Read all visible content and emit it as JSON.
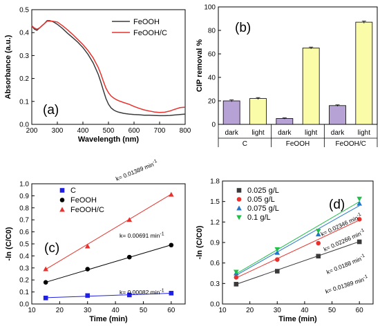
{
  "chart_data": [
    {
      "type": "line",
      "panel_label": "(a)",
      "xlabel": "Wavelength (nm)",
      "ylabel": "Absorbance (a.u.)",
      "xlim": [
        200,
        800
      ],
      "ylim": [
        0.0,
        0.5
      ],
      "xticks": [
        "200",
        "300",
        "400",
        "500",
        "600",
        "700",
        "800"
      ],
      "yticks": [
        "0.0",
        "0.1",
        "0.2",
        "0.3",
        "0.4",
        "0.5"
      ],
      "legend_position": "top-right",
      "series": [
        {
          "name": "FeOOH",
          "color": "#3a3a3a",
          "x": [
            200,
            210,
            220,
            230,
            240,
            250,
            260,
            270,
            280,
            290,
            300,
            320,
            340,
            360,
            380,
            400,
            420,
            440,
            460,
            470,
            480,
            490,
            500,
            510,
            520,
            530,
            540,
            560,
            580,
            600,
            620,
            640,
            660,
            680,
            700,
            720,
            740,
            760,
            780,
            800
          ],
          "y": [
            0.43,
            0.415,
            0.41,
            0.42,
            0.43,
            0.44,
            0.452,
            0.452,
            0.449,
            0.443,
            0.436,
            0.418,
            0.397,
            0.378,
            0.358,
            0.335,
            0.305,
            0.268,
            0.218,
            0.185,
            0.148,
            0.113,
            0.088,
            0.072,
            0.063,
            0.057,
            0.053,
            0.048,
            0.045,
            0.043,
            0.042,
            0.04,
            0.04,
            0.039,
            0.038,
            0.038,
            0.039,
            0.041,
            0.043,
            0.045
          ]
        },
        {
          "name": "FeOOH/C",
          "color": "#e8312c",
          "x": [
            200,
            210,
            220,
            230,
            240,
            250,
            260,
            270,
            280,
            290,
            300,
            320,
            340,
            360,
            380,
            400,
            420,
            440,
            460,
            470,
            480,
            490,
            500,
            510,
            520,
            530,
            540,
            560,
            580,
            600,
            620,
            640,
            660,
            680,
            700,
            720,
            740,
            760,
            780,
            800
          ],
          "y": [
            0.43,
            0.42,
            0.415,
            0.42,
            0.43,
            0.44,
            0.45,
            0.45,
            0.45,
            0.448,
            0.446,
            0.43,
            0.412,
            0.392,
            0.37,
            0.348,
            0.322,
            0.29,
            0.248,
            0.22,
            0.188,
            0.158,
            0.138,
            0.124,
            0.115,
            0.108,
            0.103,
            0.095,
            0.088,
            0.078,
            0.07,
            0.063,
            0.058,
            0.054,
            0.052,
            0.053,
            0.058,
            0.066,
            0.073,
            0.075
          ]
        }
      ]
    },
    {
      "type": "bar",
      "panel_label": "(b)",
      "ylabel": "CIP removal %",
      "ylim": [
        0,
        100
      ],
      "yticks": [
        "0",
        "20",
        "40",
        "60",
        "80",
        "100"
      ],
      "categories": [
        "dark",
        "light",
        "dark",
        "light",
        "dark",
        "light"
      ],
      "groups": [
        "C",
        "FeOOH",
        "FeOOH/C"
      ],
      "values": [
        20,
        22,
        5,
        65,
        16,
        87
      ],
      "errors": [
        0.8,
        0.8,
        0.5,
        0.8,
        0.6,
        1.0
      ],
      "colors": {
        "dark": "#b7a2d6",
        "light": "#fbfca8"
      }
    },
    {
      "type": "scatter",
      "panel_label": "(c)",
      "xlabel": "Time (min)",
      "ylabel": "-ln (C/C0)",
      "xlim": [
        10,
        65
      ],
      "ylim": [
        0.0,
        1.0
      ],
      "xticks": [
        "10",
        "20",
        "30",
        "40",
        "50",
        "60"
      ],
      "yticks": [
        "0.0",
        "0.1",
        "0.2",
        "0.3",
        "0.4",
        "0.5",
        "0.6",
        "0.7",
        "0.8",
        "0.9",
        "1.0"
      ],
      "legend_position": "top-left",
      "series": [
        {
          "name": "C",
          "color": "#1f1fe6",
          "marker": "square",
          "x": [
            15,
            30,
            45,
            60
          ],
          "y": [
            0.05,
            0.07,
            0.075,
            0.09
          ],
          "fit": [
            0.04,
            0.00082
          ],
          "k_label": "k= 0.00082 min",
          "sup": "-1"
        },
        {
          "name": "FeOOH",
          "color": "#000000",
          "marker": "circle",
          "x": [
            15,
            30,
            45,
            60
          ],
          "y": [
            0.18,
            0.29,
            0.39,
            0.49
          ],
          "fit": [
            0.077,
            0.00691
          ],
          "k_label": "k= 0.00691 min",
          "sup": "-1"
        },
        {
          "name": "FeOOH/C",
          "color": "#e8312c",
          "marker": "triangle",
          "x": [
            15,
            30,
            45,
            60
          ],
          "y": [
            0.29,
            0.48,
            0.7,
            0.91
          ],
          "fit": [
            0.08,
            0.01389
          ],
          "k_label": "k= 0.01389 min",
          "sup": "-1"
        }
      ]
    },
    {
      "type": "scatter",
      "panel_label": "(d)",
      "xlabel": "Time (min)",
      "ylabel": "-ln (C/C0)",
      "xlim": [
        10,
        65
      ],
      "ylim": [
        0.0,
        1.8
      ],
      "xticks": [
        "10",
        "20",
        "30",
        "40",
        "50",
        "60"
      ],
      "yticks": [
        "0.0",
        "0.3",
        "0.6",
        "0.9",
        "1.2",
        "1.5",
        "1.8"
      ],
      "legend_position": "top-left",
      "series": [
        {
          "name": "0.025 g/L",
          "color": "#3a3a3a",
          "marker": "square",
          "x": [
            15,
            30,
            45,
            60
          ],
          "y": [
            0.29,
            0.48,
            0.7,
            0.91
          ],
          "fit": [
            0.08,
            0.01389
          ],
          "k_label": "k= 0.01389 min",
          "sup": "-1"
        },
        {
          "name": "0.05 g/L",
          "color": "#e8312c",
          "marker": "circle",
          "x": [
            15,
            30,
            45,
            60
          ],
          "y": [
            0.39,
            0.65,
            0.89,
            1.24
          ],
          "fit": [
            0.1,
            0.0188
          ],
          "k_label": "k= 0.0188 min",
          "sup": "-1"
        },
        {
          "name": "0.075 g/L",
          "color": "#2276c9",
          "marker": "triangle",
          "x": [
            15,
            30,
            45,
            60
          ],
          "y": [
            0.45,
            0.75,
            1.02,
            1.47
          ],
          "fit": [
            0.08,
            0.02266
          ],
          "k_label": "k= 0.02266 min",
          "sup": "-1"
        },
        {
          "name": "0.1 g/L",
          "color": "#20c04a",
          "marker": "triangle-down",
          "x": [
            15,
            30,
            45,
            60
          ],
          "y": [
            0.47,
            0.8,
            1.07,
            1.54
          ],
          "fit": [
            0.09,
            0.02346
          ],
          "k_label": "k= 0.02346 min",
          "sup": "-1"
        }
      ]
    }
  ]
}
